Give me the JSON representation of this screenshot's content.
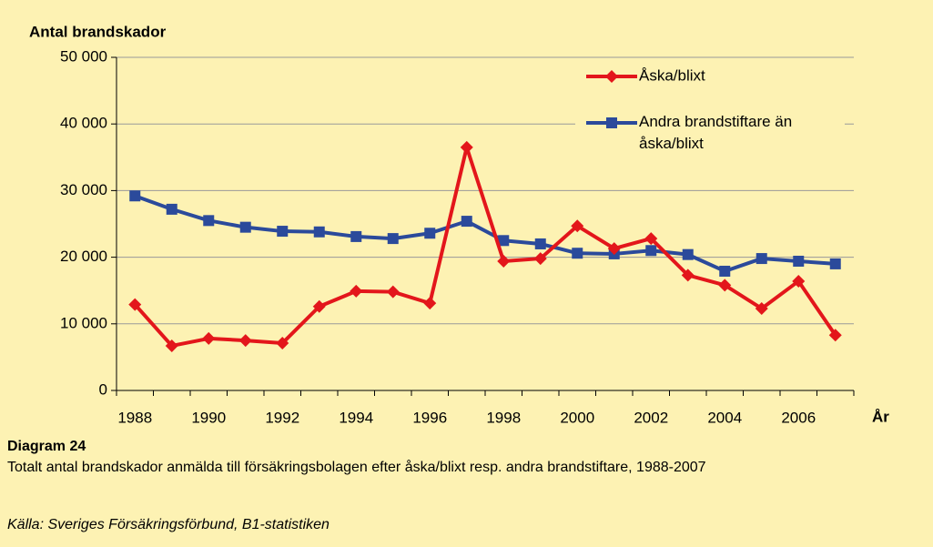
{
  "chart_data": {
    "type": "line",
    "y_label": "Antal brandskador",
    "x_label": "År",
    "categories": [
      "1988",
      null,
      "1990",
      null,
      "1992",
      null,
      "1994",
      null,
      "1996",
      null,
      "1998",
      null,
      "2000",
      null,
      "2002",
      null,
      "2004",
      null,
      "2006",
      null
    ],
    "series": [
      {
        "name": "Åska/blixt",
        "color": "#e3161b",
        "marker": "diamond",
        "values": [
          12900,
          6700,
          7800,
          7500,
          7100,
          12600,
          14900,
          14800,
          13100,
          36500,
          19400,
          19800,
          24700,
          21300,
          22800,
          17300,
          15800,
          12300,
          16400,
          8300
        ]
      },
      {
        "name": "Andra brandstiftare än åska/blixt",
        "color": "#2b4a9b",
        "marker": "square",
        "values": [
          29200,
          27200,
          25500,
          24500,
          23900,
          23800,
          23100,
          22800,
          23600,
          25400,
          22500,
          22000,
          20600,
          20500,
          21000,
          20400,
          17900,
          19800,
          19400,
          19000
        ]
      }
    ],
    "ylim": [
      0,
      50000
    ],
    "yticks": [
      {
        "value": 0,
        "label": "0"
      },
      {
        "value": 10000,
        "label": "10 000"
      },
      {
        "value": 20000,
        "label": "20 000"
      },
      {
        "value": 30000,
        "label": "30 000"
      },
      {
        "value": 40000,
        "label": "40 000"
      },
      {
        "value": 50000,
        "label": "50 000"
      }
    ],
    "grid": true,
    "legend": "top-right"
  },
  "caption": {
    "heading": "Diagram 24",
    "text": "Totalt antal brandskador anmälda till försäkringsbolagen efter åska/blixt resp. andra brandstiftare, 1988-2007",
    "source": "Källa: Sveriges Försäkringsförbund, B1-statistiken"
  }
}
